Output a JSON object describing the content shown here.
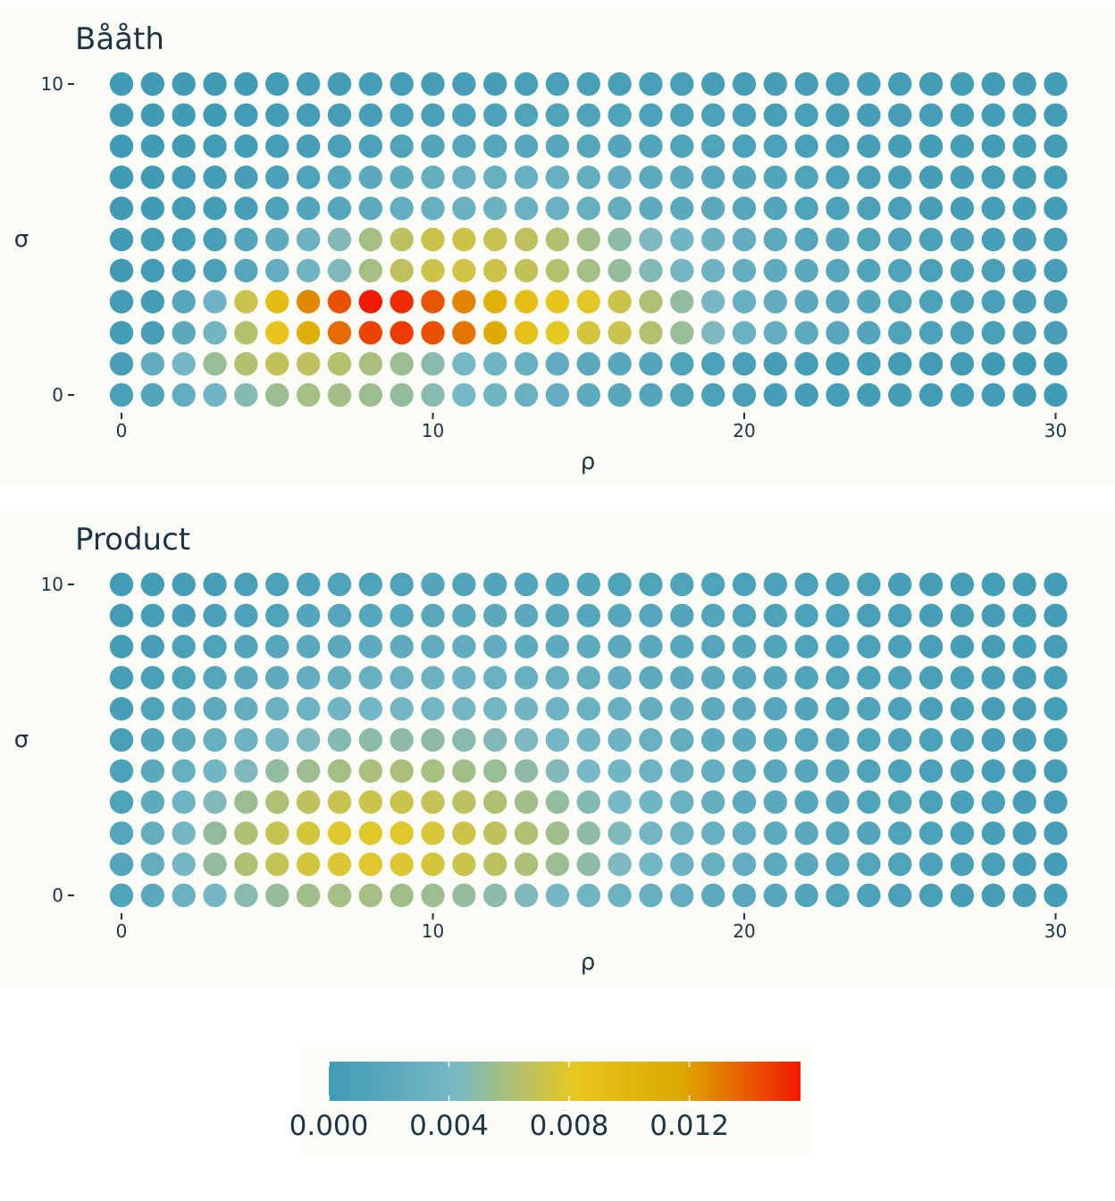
{
  "colors": {
    "panel_bg": "#fcfdf7",
    "text": "#1d3445",
    "scale": [
      "#3f9bb4",
      "#78b8c6",
      "#e8c820",
      "#dca800",
      "#f21a00"
    ]
  },
  "legend": {
    "ticks": [
      0.0,
      0.004,
      0.008,
      0.012
    ],
    "tick_labels": [
      "0.000",
      "0.004",
      "0.008",
      "0.012"
    ],
    "max": 0.0157
  },
  "chart_data": [
    {
      "type": "heatmap",
      "title": "Bååth",
      "xlabel": "ρ",
      "ylabel": "σ",
      "xlim": [
        0,
        30
      ],
      "ylim": [
        0,
        10
      ],
      "x_ticks": [
        0,
        10,
        20,
        30
      ],
      "x_tick_labels": [
        "0",
        "10",
        "20",
        "30"
      ],
      "y_ticks": [
        0,
        10
      ],
      "y_tick_labels": [
        "0",
        "10"
      ],
      "x": [
        0,
        1,
        2,
        3,
        4,
        5,
        6,
        7,
        8,
        9,
        10,
        11,
        12,
        13,
        14,
        15,
        16,
        17,
        18,
        19,
        20,
        21,
        22,
        23,
        24,
        25,
        26,
        27,
        28,
        29,
        30
      ],
      "y": [
        0,
        1,
        2,
        3,
        4,
        5,
        6,
        7,
        8,
        9,
        10
      ],
      "values": [
        [
          0.0008,
          0.0015,
          0.0026,
          0.0037,
          0.0047,
          0.0055,
          0.0058,
          0.0057,
          0.0055,
          0.0052,
          0.0048,
          0.0042,
          0.0036,
          0.0031,
          0.0026,
          0.0022,
          0.0018,
          0.0014,
          0.0011,
          0.0009,
          0.0007,
          0.0006,
          0.0005,
          0.0004,
          0.0003,
          0.0003,
          0.0002,
          0.0002,
          0.0002,
          0.0001,
          0.0001
        ],
        [
          0.0006,
          0.0025,
          0.004,
          0.0054,
          0.0063,
          0.0068,
          0.0067,
          0.0064,
          0.006,
          0.0055,
          0.0048,
          0.0042,
          0.0036,
          0.003,
          0.0025,
          0.0021,
          0.0017,
          0.0014,
          0.0011,
          0.0009,
          0.0007,
          0.0005,
          0.0004,
          0.0003,
          0.0003,
          0.0002,
          0.0002,
          0.0002,
          0.0001,
          0.0001,
          0.0001
        ],
        [
          0.0003,
          0.0006,
          0.002,
          0.0038,
          0.0064,
          0.0085,
          0.0109,
          0.0134,
          0.0146,
          0.0148,
          0.0142,
          0.0132,
          0.0114,
          0.0089,
          0.0081,
          0.0075,
          0.0071,
          0.0063,
          0.0054,
          0.0044,
          0.0032,
          0.0026,
          0.0022,
          0.0018,
          0.0015,
          0.0012,
          0.001,
          0.0008,
          0.0007,
          0.0006,
          0.0005
        ],
        [
          0.0002,
          0.0004,
          0.0016,
          0.0035,
          0.0071,
          0.0094,
          0.0126,
          0.0142,
          0.0157,
          0.0152,
          0.0141,
          0.0128,
          0.0108,
          0.0092,
          0.0085,
          0.008,
          0.0072,
          0.0062,
          0.0051,
          0.0041,
          0.003,
          0.0025,
          0.0021,
          0.0017,
          0.0014,
          0.0012,
          0.001,
          0.0008,
          0.0007,
          0.0006,
          0.0005
        ],
        [
          0.0001,
          0.0002,
          0.0004,
          0.0007,
          0.0016,
          0.0026,
          0.0036,
          0.0045,
          0.0058,
          0.0067,
          0.0072,
          0.0073,
          0.0072,
          0.0068,
          0.0064,
          0.0058,
          0.0052,
          0.0046,
          0.004,
          0.0033,
          0.0027,
          0.0023,
          0.0019,
          0.0016,
          0.0013,
          0.0011,
          0.0009,
          0.0008,
          0.0007,
          0.0006,
          0.0005
        ],
        [
          0.0001,
          0.0002,
          0.0004,
          0.0007,
          0.0014,
          0.0023,
          0.0034,
          0.0046,
          0.0058,
          0.0066,
          0.0071,
          0.0072,
          0.007,
          0.0067,
          0.0063,
          0.0057,
          0.005,
          0.0044,
          0.0038,
          0.0032,
          0.0026,
          0.0022,
          0.0018,
          0.0015,
          0.0012,
          0.001,
          0.0009,
          0.0008,
          0.0006,
          0.0005,
          0.0004
        ],
        [
          0.0001,
          0.0001,
          0.0002,
          0.0004,
          0.0006,
          0.001,
          0.0014,
          0.0018,
          0.0022,
          0.0026,
          0.0029,
          0.0031,
          0.0032,
          0.0032,
          0.0031,
          0.0029,
          0.0027,
          0.0024,
          0.0021,
          0.0019,
          0.0016,
          0.0014,
          0.0012,
          0.001,
          0.0009,
          0.0007,
          0.0006,
          0.0005,
          0.0004,
          0.0004,
          0.0003
        ],
        [
          0.0001,
          0.0001,
          0.0002,
          0.0003,
          0.0005,
          0.0008,
          0.0012,
          0.0016,
          0.002,
          0.0024,
          0.0027,
          0.0029,
          0.003,
          0.003,
          0.0029,
          0.0027,
          0.0025,
          0.0022,
          0.002,
          0.0017,
          0.0015,
          0.0013,
          0.0011,
          0.0009,
          0.0008,
          0.0006,
          0.0005,
          0.0005,
          0.0004,
          0.0003,
          0.0003
        ],
        [
          0.0001,
          0.0001,
          0.0001,
          0.0002,
          0.0003,
          0.0004,
          0.0006,
          0.0008,
          0.001,
          0.0012,
          0.0014,
          0.0016,
          0.0017,
          0.0017,
          0.0017,
          0.0016,
          0.0015,
          0.0014,
          0.0013,
          0.0011,
          0.001,
          0.0009,
          0.0008,
          0.0007,
          0.0006,
          0.0005,
          0.0004,
          0.0004,
          0.0003,
          0.0003,
          0.0002
        ],
        [
          0.0001,
          0.0001,
          0.0001,
          0.0001,
          0.0002,
          0.0003,
          0.0004,
          0.0005,
          0.0006,
          0.0007,
          0.0008,
          0.0009,
          0.001,
          0.0011,
          0.0011,
          0.0011,
          0.0011,
          0.001,
          0.001,
          0.0009,
          0.0008,
          0.0007,
          0.0007,
          0.0006,
          0.0005,
          0.0005,
          0.0004,
          0.0003,
          0.0003,
          0.0003,
          0.0002
        ],
        [
          0.0001,
          0.0001,
          0.0001,
          0.0001,
          0.0001,
          0.0002,
          0.0002,
          0.0003,
          0.0004,
          0.0004,
          0.0005,
          0.0006,
          0.0006,
          0.0007,
          0.0007,
          0.0007,
          0.0007,
          0.0007,
          0.0007,
          0.0006,
          0.0006,
          0.0005,
          0.0005,
          0.0005,
          0.0004,
          0.0004,
          0.0003,
          0.0003,
          0.0003,
          0.0002,
          0.0002
        ]
      ]
    },
    {
      "type": "heatmap",
      "title": "Product",
      "xlabel": "ρ",
      "ylabel": "σ",
      "xlim": [
        0,
        30
      ],
      "ylim": [
        0,
        10
      ],
      "x_ticks": [
        0,
        10,
        20,
        30
      ],
      "x_tick_labels": [
        "0",
        "10",
        "20",
        "30"
      ],
      "y_ticks": [
        0,
        10
      ],
      "y_tick_labels": [
        "0",
        "10"
      ],
      "x": [
        0,
        1,
        2,
        3,
        4,
        5,
        6,
        7,
        8,
        9,
        10,
        11,
        12,
        13,
        14,
        15,
        16,
        17,
        18,
        19,
        20,
        21,
        22,
        23,
        24,
        25,
        26,
        27,
        28,
        29,
        30
      ],
      "y": [
        0,
        1,
        2,
        3,
        4,
        5,
        6,
        7,
        8,
        9,
        10
      ],
      "values": [
        [
          0.0011,
          0.0021,
          0.0032,
          0.0041,
          0.0048,
          0.0053,
          0.0056,
          0.0058,
          0.0058,
          0.0057,
          0.0055,
          0.0052,
          0.0049,
          0.0045,
          0.0041,
          0.0037,
          0.0033,
          0.0029,
          0.0026,
          0.0022,
          0.0019,
          0.0017,
          0.0014,
          0.0012,
          0.001,
          0.0009,
          0.0007,
          0.0006,
          0.0005,
          0.0004,
          0.0004
        ],
        [
          0.0014,
          0.0027,
          0.004,
          0.0052,
          0.0062,
          0.0069,
          0.0074,
          0.0077,
          0.0078,
          0.0077,
          0.0075,
          0.0071,
          0.0066,
          0.0061,
          0.0055,
          0.005,
          0.0044,
          0.0039,
          0.0034,
          0.003,
          0.0026,
          0.0022,
          0.0019,
          0.0016,
          0.0014,
          0.0012,
          0.001,
          0.0008,
          0.0007,
          0.0006,
          0.0005
        ],
        [
          0.0014,
          0.0027,
          0.004,
          0.0052,
          0.0062,
          0.007,
          0.0075,
          0.0078,
          0.0079,
          0.0078,
          0.0076,
          0.0072,
          0.0067,
          0.0062,
          0.0056,
          0.005,
          0.0045,
          0.004,
          0.0035,
          0.003,
          0.0026,
          0.0022,
          0.0019,
          0.0016,
          0.0014,
          0.0012,
          0.001,
          0.0008,
          0.0007,
          0.0006,
          0.0005
        ],
        [
          0.0012,
          0.0024,
          0.0036,
          0.0046,
          0.0055,
          0.0062,
          0.0067,
          0.007,
          0.0071,
          0.0071,
          0.0069,
          0.0066,
          0.0062,
          0.0057,
          0.0052,
          0.0047,
          0.0042,
          0.0037,
          0.0032,
          0.0028,
          0.0024,
          0.0021,
          0.0018,
          0.0015,
          0.0013,
          0.0011,
          0.0009,
          0.0008,
          0.0007,
          0.0006,
          0.0005
        ],
        [
          0.001,
          0.002,
          0.0029,
          0.0038,
          0.0045,
          0.0051,
          0.0055,
          0.0058,
          0.006,
          0.006,
          0.0059,
          0.0057,
          0.0054,
          0.005,
          0.0046,
          0.0042,
          0.0038,
          0.0034,
          0.003,
          0.0026,
          0.0022,
          0.0019,
          0.0017,
          0.0014,
          0.0012,
          0.001,
          0.0009,
          0.0008,
          0.0006,
          0.0005,
          0.0005
        ],
        [
          0.0008,
          0.0015,
          0.0022,
          0.0029,
          0.0035,
          0.004,
          0.0044,
          0.0047,
          0.0049,
          0.005,
          0.005,
          0.0048,
          0.0046,
          0.0044,
          0.0041,
          0.0037,
          0.0034,
          0.0031,
          0.0027,
          0.0024,
          0.0021,
          0.0018,
          0.0016,
          0.0014,
          0.0012,
          0.001,
          0.0009,
          0.0007,
          0.0006,
          0.0005,
          0.0004
        ],
        [
          0.0006,
          0.0011,
          0.0017,
          0.0022,
          0.0027,
          0.0031,
          0.0034,
          0.0037,
          0.0039,
          0.004,
          0.004,
          0.004,
          0.0039,
          0.0037,
          0.0035,
          0.0032,
          0.003,
          0.0027,
          0.0025,
          0.0022,
          0.0019,
          0.0017,
          0.0015,
          0.0013,
          0.0011,
          0.001,
          0.0008,
          0.0007,
          0.0006,
          0.0005,
          0.0004
        ],
        [
          0.0004,
          0.0008,
          0.0012,
          0.0016,
          0.002,
          0.0023,
          0.0026,
          0.0028,
          0.003,
          0.0031,
          0.0032,
          0.0032,
          0.0031,
          0.003,
          0.0029,
          0.0027,
          0.0025,
          0.0023,
          0.0021,
          0.0019,
          0.0017,
          0.0015,
          0.0013,
          0.0012,
          0.001,
          0.0009,
          0.0008,
          0.0007,
          0.0006,
          0.0005,
          0.0004
        ],
        [
          0.0003,
          0.0006,
          0.0009,
          0.0012,
          0.0015,
          0.0017,
          0.0019,
          0.0021,
          0.0023,
          0.0024,
          0.0025,
          0.0025,
          0.0025,
          0.0024,
          0.0023,
          0.0022,
          0.0021,
          0.0019,
          0.0018,
          0.0016,
          0.0015,
          0.0013,
          0.0012,
          0.001,
          0.0009,
          0.0008,
          0.0007,
          0.0006,
          0.0005,
          0.0004,
          0.0004
        ],
        [
          0.0002,
          0.0004,
          0.0006,
          0.0008,
          0.001,
          0.0012,
          0.0014,
          0.0016,
          0.0017,
          0.0018,
          0.0019,
          0.0019,
          0.0019,
          0.0019,
          0.0018,
          0.0018,
          0.0017,
          0.0016,
          0.0015,
          0.0014,
          0.0012,
          0.0011,
          0.001,
          0.0009,
          0.0008,
          0.0007,
          0.0006,
          0.0005,
          0.0005,
          0.0004,
          0.0003
        ],
        [
          0.0002,
          0.0003,
          0.0005,
          0.0006,
          0.0008,
          0.0009,
          0.001,
          0.0011,
          0.0012,
          0.0013,
          0.0014,
          0.0014,
          0.0014,
          0.0014,
          0.0014,
          0.0014,
          0.0013,
          0.0013,
          0.0012,
          0.0011,
          0.001,
          0.0009,
          0.0009,
          0.0008,
          0.0007,
          0.0006,
          0.0005,
          0.0005,
          0.0004,
          0.0003,
          0.0003
        ]
      ]
    }
  ]
}
